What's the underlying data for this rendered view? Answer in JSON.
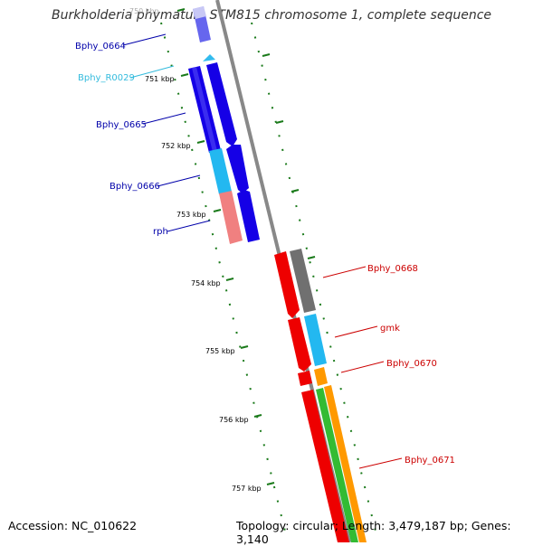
{
  "title": "Burkholderia phymatum STM815 chromosome 1, complete sequence",
  "footer": {
    "accession": "Accession: NC_010622",
    "summary": "Topology: circular; Length: 3,479,187 bp; Genes: 3,140"
  },
  "ruler": {
    "ticks": [
      "750 kbp",
      "751 kbp",
      "752 kbp",
      "753 kbp",
      "754 kbp",
      "755 kbp",
      "756 kbp",
      "757 kbp"
    ]
  },
  "colors": {
    "backbone": "#888888",
    "tick": "#1a7a1a",
    "blue_gene": "#0a00e0",
    "cyan_gene": "#23b8f0",
    "pink_gene": "#f08080",
    "red_gene": "#ee0000",
    "gray_gene": "#707070",
    "orange_gene": "#ff9900",
    "green_gene": "#33bb33",
    "left_label": "#0000aa",
    "left_label_rrna": "#33bbdd",
    "right_label": "#cc0000"
  },
  "genes": [
    {
      "label": "Bphy_0664",
      "side": "left",
      "strand": "forward",
      "kind": "cds"
    },
    {
      "label": "Bphy_R0029",
      "side": "left",
      "strand": "forward",
      "kind": "rna"
    },
    {
      "label": "Bphy_0665",
      "side": "left",
      "strand": "forward",
      "kind": "cds"
    },
    {
      "label": "Bphy_0666",
      "side": "left",
      "strand": "forward",
      "kind": "cds"
    },
    {
      "label": "rph",
      "side": "left",
      "strand": "forward",
      "kind": "cds"
    },
    {
      "label": "Bphy_0668",
      "side": "right",
      "strand": "reverse",
      "kind": "cds"
    },
    {
      "label": "gmk",
      "side": "right",
      "strand": "reverse",
      "kind": "cds"
    },
    {
      "label": "Bphy_0670",
      "side": "right",
      "strand": "reverse",
      "kind": "cds"
    },
    {
      "label": "Bphy_0671",
      "side": "right",
      "strand": "reverse",
      "kind": "cds"
    }
  ]
}
